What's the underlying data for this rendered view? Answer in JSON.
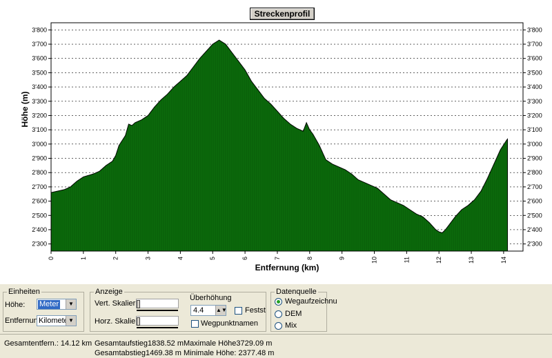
{
  "chart_data": {
    "type": "area",
    "title": "Streckenprofil",
    "xlabel": "Entfernung (km)",
    "ylabel": "Höhe (m)",
    "xlim": [
      0,
      14.6
    ],
    "ylim": [
      2250,
      3850
    ],
    "xticks": [
      "0",
      "1",
      "2",
      "3",
      "4",
      "5",
      "6",
      "7",
      "8",
      "9",
      "10",
      "11",
      "12",
      "13",
      "14"
    ],
    "yticks": [
      "2'300",
      "2'400",
      "2'500",
      "2'600",
      "2'700",
      "2'800",
      "2'900",
      "3'000",
      "3'100",
      "3'200",
      "3'300",
      "3'400",
      "3'500",
      "3'600",
      "3'700",
      "3'800"
    ],
    "ytick_values": [
      2300,
      2400,
      2500,
      2600,
      2700,
      2800,
      2900,
      3000,
      3100,
      3200,
      3300,
      3400,
      3500,
      3600,
      3700,
      3800
    ],
    "fill_color": "#0b6b0b",
    "x": [
      0,
      0.1,
      0.4,
      0.6,
      0.8,
      1.0,
      1.3,
      1.5,
      1.7,
      1.9,
      2.0,
      2.1,
      2.3,
      2.4,
      2.5,
      2.6,
      2.8,
      3.0,
      3.2,
      3.4,
      3.6,
      3.8,
      4.0,
      4.2,
      4.4,
      4.6,
      4.8,
      5.0,
      5.2,
      5.4,
      5.6,
      5.8,
      6.0,
      6.2,
      6.4,
      6.6,
      6.8,
      7.0,
      7.2,
      7.4,
      7.6,
      7.8,
      7.9,
      8.0,
      8.1,
      8.3,
      8.5,
      8.7,
      8.9,
      9.1,
      9.3,
      9.5,
      9.7,
      9.9,
      10.1,
      10.3,
      10.5,
      10.7,
      10.9,
      11.1,
      11.3,
      11.5,
      11.7,
      11.9,
      12.0,
      12.1,
      12.2,
      12.3,
      12.5,
      12.7,
      12.9,
      13.1,
      13.3,
      13.5,
      13.7,
      13.9,
      14.1,
      14.12
    ],
    "y": [
      2660,
      2665,
      2680,
      2700,
      2740,
      2770,
      2790,
      2810,
      2850,
      2880,
      2920,
      2990,
      3060,
      3140,
      3130,
      3150,
      3170,
      3200,
      3260,
      3310,
      3350,
      3400,
      3440,
      3480,
      3540,
      3600,
      3650,
      3700,
      3729,
      3700,
      3640,
      3580,
      3520,
      3440,
      3380,
      3320,
      3280,
      3230,
      3180,
      3140,
      3110,
      3090,
      3150,
      3100,
      3070,
      2990,
      2890,
      2860,
      2840,
      2820,
      2790,
      2750,
      2730,
      2710,
      2690,
      2650,
      2610,
      2590,
      2570,
      2540,
      2510,
      2490,
      2450,
      2400,
      2385,
      2378,
      2400,
      2430,
      2490,
      2540,
      2570,
      2610,
      2670,
      2760,
      2860,
      2960,
      3030,
      3035
    ]
  },
  "panel": {
    "einheiten": {
      "title": "Einheiten",
      "hoehe_label": "Höhe:",
      "hoehe_value": "Meter",
      "entfernung_label": "Entfernung:",
      "entfernung_value": "Kilometer"
    },
    "anzeige": {
      "title": "Anzeige",
      "vert_label": "Vert. Skalieru",
      "horz_label": "Horz. Skalieri",
      "ueberhoehung_label": "Überhöhung",
      "ueberhoehung_value": "4.4",
      "fest_label": "Festst",
      "wegpunkt_label": "Wegpunktnamen"
    },
    "datenquelle": {
      "title": "Datenquelle",
      "options": [
        "Wegaufzeichnu",
        "DEM",
        "Mix"
      ],
      "selected": 0
    }
  },
  "status": {
    "gesamtentfernung": "Gesamtentfern.:  14.12 km",
    "gesamtaufstieg": "Gesamtaufstieg1838.52 m",
    "gesamtabstieg": "Gesamtabstieg1469.38 m",
    "maximale_hoehe": "Maximale Höhe3729.09 m",
    "minimale_hoehe": "Minimale Höhe: 2377.48 m"
  }
}
